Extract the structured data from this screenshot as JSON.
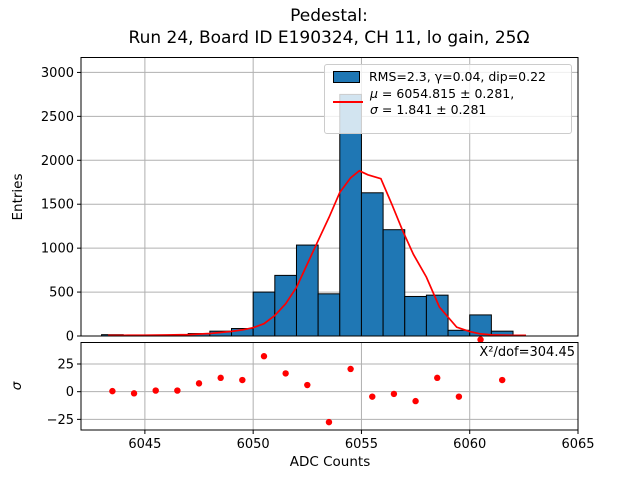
{
  "title": {
    "line1": "Pedestal:",
    "line2": "Run 24, Board ID E190324, CH 11, lo gain, 25Ω"
  },
  "legend": {
    "entry1": {
      "label": "RMS=2.3, γ=0.04, dip=0.22",
      "swatch_color": "#1f77b4"
    },
    "entry2": {
      "line1_symbol": "μ",
      "line1_text": " = 6054.815 ± 0.281,",
      "line2_symbol": "σ",
      "line2_text": " = 1.841 ± 0.281",
      "swatch_color": "#ff0000"
    }
  },
  "chart_data": {
    "type": "bar",
    "subtype": "histogram_with_fit_and_residuals",
    "title": [
      "Pedestal:",
      "Run 24, Board ID E190324, CH 11, lo gain, 25Ω"
    ],
    "xlabel": "ADC Counts",
    "xlim": [
      6042.05,
      6065.0
    ],
    "xticks": [
      6045,
      6050,
      6055,
      6060,
      6065
    ],
    "grid": true,
    "legend_position": "upper right",
    "colors": {
      "bar_fill": "#1f77b4",
      "bar_edge": "#000000",
      "fit_line": "#ff0000",
      "residual_marker": "#ff0000",
      "grid": "#b0b0b0"
    },
    "legend": [
      {
        "type": "patch",
        "color": "#1f77b4",
        "label": "RMS=2.3, γ=0.04, dip=0.22"
      },
      {
        "type": "line",
        "color": "#ff0000",
        "label": "μ = 6054.815 ± 0.281, σ = 1.841 ± 0.281"
      }
    ],
    "main_panel": {
      "ylabel": "Entries",
      "ylim": [
        0,
        3170
      ],
      "yticks": [
        0,
        500,
        1000,
        1500,
        2000,
        2500,
        3000
      ],
      "bin_width": 1,
      "bin_left_edges": [
        6043,
        6044,
        6045,
        6046,
        6047,
        6048,
        6049,
        6050,
        6051,
        6052,
        6053,
        6054,
        6055,
        6056,
        6057,
        6058,
        6059,
        6060,
        6061
      ],
      "counts": [
        15,
        6,
        6,
        10,
        28,
        55,
        85,
        500,
        690,
        1035,
        480,
        2750,
        1630,
        1210,
        450,
        465,
        65,
        240,
        55
      ],
      "fit_curve_points": [
        [
          6043.3,
          8
        ],
        [
          6044,
          8
        ],
        [
          6045,
          9
        ],
        [
          6046,
          11
        ],
        [
          6047,
          16
        ],
        [
          6048,
          28
        ],
        [
          6049,
          52
        ],
        [
          6049.5,
          70
        ],
        [
          6050,
          95
        ],
        [
          6050.5,
          140
        ],
        [
          6051,
          233
        ],
        [
          6051.5,
          366
        ],
        [
          6052,
          554
        ],
        [
          6052.5,
          820
        ],
        [
          6053,
          1085
        ],
        [
          6053.5,
          1350
        ],
        [
          6054,
          1634
        ],
        [
          6054.5,
          1800
        ],
        [
          6054.9,
          1880
        ],
        [
          6055.3,
          1835
        ],
        [
          6055.9,
          1790
        ],
        [
          6056.4,
          1500
        ],
        [
          6056.9,
          1200
        ],
        [
          6057.4,
          930
        ],
        [
          6058,
          670
        ],
        [
          6058.6,
          330
        ],
        [
          6059.4,
          100
        ],
        [
          6060,
          50
        ],
        [
          6060.5,
          24
        ],
        [
          6061,
          14
        ],
        [
          6061.5,
          10
        ],
        [
          6062,
          8
        ],
        [
          6062.6,
          7
        ]
      ]
    },
    "residual_panel": {
      "ylabel": "σ",
      "ylim": [
        -34.6,
        44.4
      ],
      "yticks": [
        -25,
        0,
        25
      ],
      "x": [
        6043.5,
        6044.5,
        6045.5,
        6046.5,
        6047.5,
        6048.5,
        6049.5,
        6050.5,
        6051.5,
        6052.5,
        6053.5,
        6054.5,
        6055.5,
        6056.5,
        6057.5,
        6058.5,
        6059.5,
        6060.5,
        6061.5
      ],
      "values": [
        0.5,
        -1.5,
        1,
        1,
        7.5,
        12.5,
        10.5,
        32,
        16.5,
        6,
        -27.5,
        20.5,
        -4.5,
        -2,
        -8.5,
        12.5,
        -4.5,
        47,
        10.5
      ],
      "annotation": "X²/dof=304.45"
    }
  }
}
